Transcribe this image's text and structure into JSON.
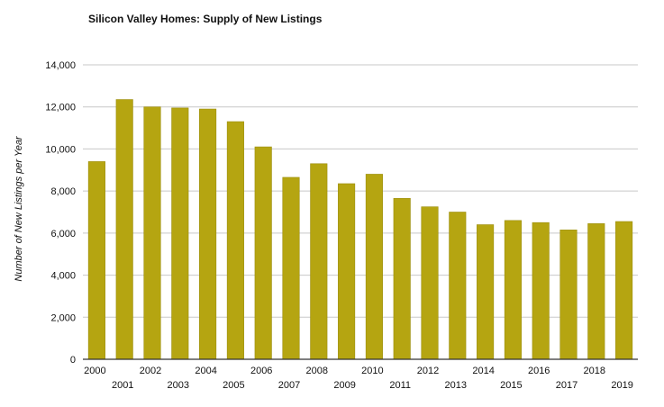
{
  "chart_data": {
    "type": "bar",
    "title": "Silicon Valley Homes: Supply of New Listings",
    "xlabel": "",
    "ylabel": "Number of New Listings per Year",
    "categories": [
      "2000",
      "2001",
      "2002",
      "2003",
      "2004",
      "2005",
      "2006",
      "2007",
      "2008",
      "2009",
      "2010",
      "2011",
      "2012",
      "2013",
      "2014",
      "2015",
      "2016",
      "2017",
      "2018",
      "2019"
    ],
    "values": [
      9400,
      12350,
      12000,
      11950,
      11900,
      11300,
      10100,
      8650,
      9300,
      8350,
      8800,
      7650,
      7250,
      7000,
      6400,
      6600,
      6500,
      6150,
      6450,
      6550
    ],
    "ylim": [
      0,
      14000
    ],
    "yticks": [
      "0",
      "2,000",
      "4,000",
      "6,000",
      "8,000",
      "10,000",
      "12,000",
      "14,000"
    ],
    "ytick_values": [
      0,
      2000,
      4000,
      6000,
      8000,
      10000,
      12000,
      14000
    ],
    "grid": true,
    "bar_color": "#b5a511",
    "bar_edge_color": "#9c8e0e",
    "grid_color": "#c8c8c8"
  }
}
